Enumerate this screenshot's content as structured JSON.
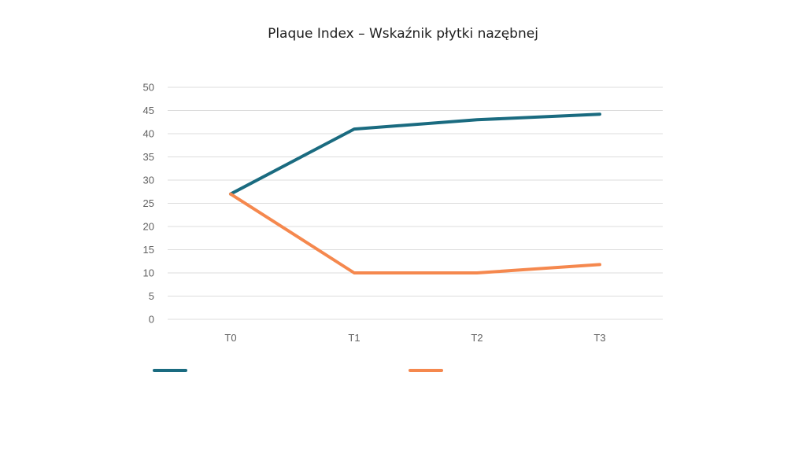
{
  "chart_data": {
    "type": "line",
    "title": "Plaque Index – Wskaźnik płytki nazębnej",
    "xlabel": "",
    "ylabel": "",
    "categories": [
      "T0",
      "T1",
      "T2",
      "T3"
    ],
    "ylim": [
      0,
      50
    ],
    "yticks": [
      0,
      5,
      10,
      15,
      20,
      25,
      30,
      35,
      40,
      45,
      50
    ],
    "grid": true,
    "legend_position": "bottom-left",
    "series": [
      {
        "values": [
          27,
          41,
          43,
          44.2
        ],
        "color": "#1a6b80"
      },
      {
        "values": [
          27,
          10,
          10,
          11.8
        ],
        "color": "#f5884e"
      }
    ]
  }
}
